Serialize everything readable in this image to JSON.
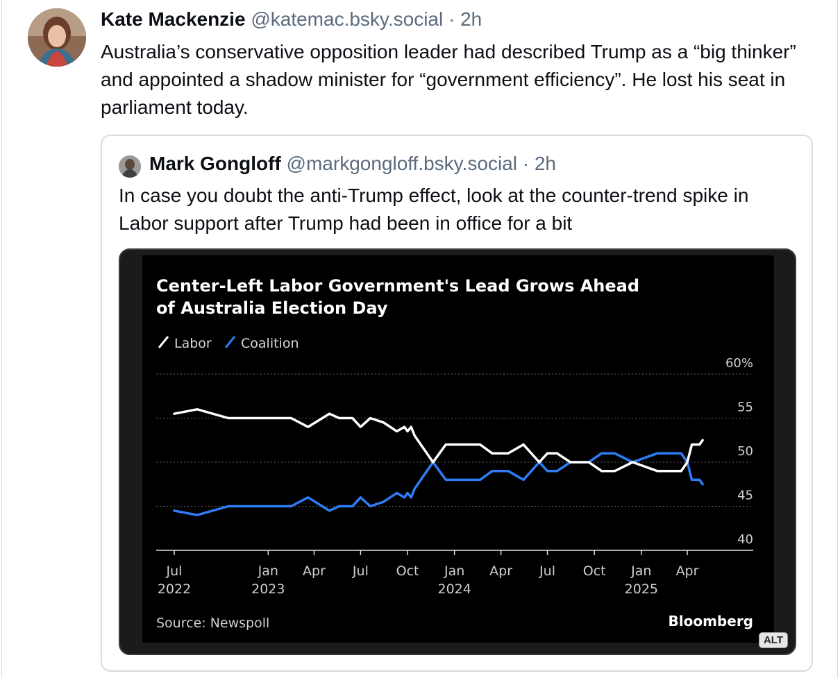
{
  "post": {
    "author_name": "Kate Mackenzie",
    "handle": "@katemac.bsky.social",
    "separator": "·",
    "time": "2h",
    "text": "Australia’s conservative opposition leader had described Trump as a “big thinker” and appointed a shadow minister for “government efficiency”. He lost his seat in parliament today."
  },
  "quote": {
    "author_name": "Mark Gongloff",
    "handle": "@markgongloff.bsky.social",
    "separator": "·",
    "time": "2h",
    "text": "In case you doubt the anti-Trump effect, look at the counter-trend spike in Labor support after Trump had been in office for a bit"
  },
  "alt_badge": "ALT",
  "chart_data": {
    "type": "line",
    "title": "Center-Left Labor Government's Lead Grows Ahead of Australia Election Day",
    "source": "Source: Newspoll",
    "brand": "Bloomberg",
    "y_ticks": [
      "60%",
      "55",
      "50",
      "45",
      "40"
    ],
    "ylim": [
      40,
      60
    ],
    "x_ticks": [
      {
        "date": "2022-07-01",
        "line1": "Jul",
        "line2": "2022"
      },
      {
        "date": "2023-01-01",
        "line1": "Jan",
        "line2": "2023"
      },
      {
        "date": "2023-04-01",
        "line1": "Apr",
        "line2": ""
      },
      {
        "date": "2023-07-01",
        "line1": "Jul",
        "line2": ""
      },
      {
        "date": "2023-10-01",
        "line1": "Oct",
        "line2": ""
      },
      {
        "date": "2024-01-01",
        "line1": "Jan",
        "line2": "2024"
      },
      {
        "date": "2024-04-01",
        "line1": "Apr",
        "line2": ""
      },
      {
        "date": "2024-07-01",
        "line1": "Jul",
        "line2": ""
      },
      {
        "date": "2024-10-01",
        "line1": "Oct",
        "line2": ""
      },
      {
        "date": "2025-01-01",
        "line1": "Jan",
        "line2": "2025"
      },
      {
        "date": "2025-04-01",
        "line1": "Apr",
        "line2": ""
      }
    ],
    "series": [
      {
        "name": "Labor",
        "color": "#ffffff",
        "points": [
          [
            "2022-07-01",
            55.5
          ],
          [
            "2022-08-15",
            56
          ],
          [
            "2022-10-15",
            55
          ],
          [
            "2022-12-15",
            55
          ],
          [
            "2023-02-15",
            55
          ],
          [
            "2023-03-20",
            54
          ],
          [
            "2023-05-01",
            55.5
          ],
          [
            "2023-05-20",
            55
          ],
          [
            "2023-06-15",
            55
          ],
          [
            "2023-07-01",
            54
          ],
          [
            "2023-07-20",
            55
          ],
          [
            "2023-08-15",
            54.5
          ],
          [
            "2023-09-10",
            53.5
          ],
          [
            "2023-09-25",
            54
          ],
          [
            "2023-10-01",
            53.5
          ],
          [
            "2023-10-08",
            54
          ],
          [
            "2023-10-15",
            53
          ],
          [
            "2023-11-20",
            50
          ],
          [
            "2023-12-15",
            52
          ],
          [
            "2024-02-20",
            52
          ],
          [
            "2024-03-15",
            51
          ],
          [
            "2024-04-15",
            51
          ],
          [
            "2024-05-15",
            52
          ],
          [
            "2024-06-15",
            50
          ],
          [
            "2024-07-01",
            51
          ],
          [
            "2024-07-20",
            51
          ],
          [
            "2024-08-15",
            50
          ],
          [
            "2024-09-20",
            50
          ],
          [
            "2024-10-15",
            49
          ],
          [
            "2024-11-10",
            49
          ],
          [
            "2024-12-15",
            50
          ],
          [
            "2025-02-01",
            49
          ],
          [
            "2025-02-20",
            49
          ],
          [
            "2025-03-20",
            49
          ],
          [
            "2025-04-01",
            50
          ],
          [
            "2025-04-10",
            52
          ],
          [
            "2025-04-25",
            52
          ],
          [
            "2025-05-01",
            52.5
          ]
        ]
      },
      {
        "name": "Coalition",
        "color": "#2e7df6",
        "points": [
          [
            "2022-07-01",
            44.5
          ],
          [
            "2022-08-15",
            44
          ],
          [
            "2022-10-15",
            45
          ],
          [
            "2022-12-15",
            45
          ],
          [
            "2023-02-15",
            45
          ],
          [
            "2023-03-20",
            46
          ],
          [
            "2023-05-01",
            44.5
          ],
          [
            "2023-05-20",
            45
          ],
          [
            "2023-06-15",
            45
          ],
          [
            "2023-07-01",
            46
          ],
          [
            "2023-07-20",
            45
          ],
          [
            "2023-08-15",
            45.5
          ],
          [
            "2023-09-10",
            46.5
          ],
          [
            "2023-09-25",
            46
          ],
          [
            "2023-10-01",
            46.5
          ],
          [
            "2023-10-08",
            46
          ],
          [
            "2023-10-15",
            47
          ],
          [
            "2023-11-20",
            50
          ],
          [
            "2023-12-15",
            48
          ],
          [
            "2024-02-20",
            48
          ],
          [
            "2024-03-15",
            49
          ],
          [
            "2024-04-15",
            49
          ],
          [
            "2024-05-15",
            48
          ],
          [
            "2024-06-15",
            50
          ],
          [
            "2024-07-01",
            49
          ],
          [
            "2024-07-20",
            49
          ],
          [
            "2024-08-15",
            50
          ],
          [
            "2024-09-20",
            50
          ],
          [
            "2024-10-15",
            51
          ],
          [
            "2024-11-10",
            51
          ],
          [
            "2024-12-15",
            50
          ],
          [
            "2025-02-01",
            51
          ],
          [
            "2025-02-20",
            51
          ],
          [
            "2025-03-20",
            51
          ],
          [
            "2025-04-01",
            50
          ],
          [
            "2025-04-10",
            48
          ],
          [
            "2025-04-25",
            48
          ],
          [
            "2025-05-01",
            47.5
          ]
        ]
      }
    ]
  }
}
